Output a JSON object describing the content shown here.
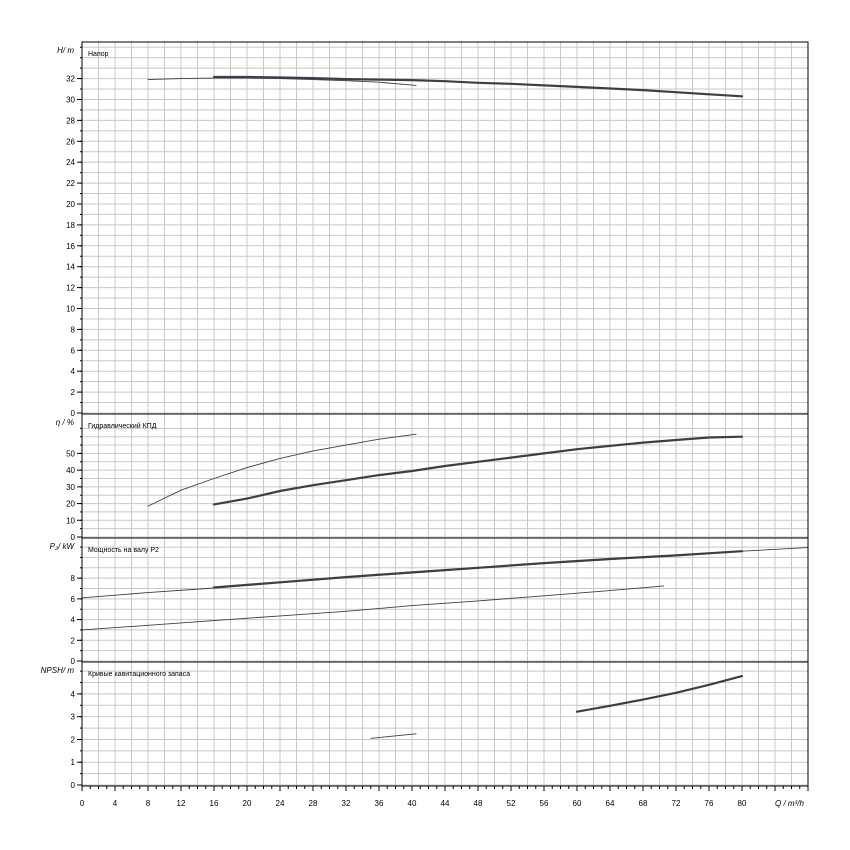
{
  "chart_data": {
    "type": "line",
    "x_axis": {
      "label": "Q / m³/h",
      "range": [
        0,
        88
      ],
      "ticks": [
        0,
        4,
        8,
        12,
        16,
        20,
        24,
        28,
        32,
        36,
        40,
        44,
        48,
        52,
        56,
        60,
        64,
        68,
        72,
        76,
        80
      ]
    },
    "panels": [
      {
        "id": "head",
        "title": "Напор",
        "ylabel": "H/ m",
        "ylim": [
          0,
          35.5
        ],
        "yticks": [
          0,
          2,
          4,
          6,
          8,
          10,
          12,
          14,
          16,
          18,
          20,
          22,
          24,
          26,
          28,
          30,
          32
        ],
        "series": [
          {
            "style": "bold",
            "color": "#3a3f4a",
            "points": [
              [
                16,
                32.15
              ],
              [
                20,
                32.15
              ],
              [
                24,
                32.1
              ],
              [
                28,
                32.05
              ],
              [
                32,
                31.95
              ],
              [
                36,
                31.9
              ],
              [
                40,
                31.85
              ],
              [
                44,
                31.75
              ],
              [
                48,
                31.6
              ],
              [
                52,
                31.5
              ],
              [
                56,
                31.35
              ],
              [
                60,
                31.2
              ],
              [
                64,
                31.05
              ],
              [
                68,
                30.9
              ],
              [
                72,
                30.7
              ],
              [
                76,
                30.5
              ],
              [
                80,
                30.3
              ]
            ]
          },
          {
            "style": "thin",
            "color": "#3a3f4a",
            "points": [
              [
                8,
                31.9
              ],
              [
                12,
                32.0
              ],
              [
                16,
                32.05
              ],
              [
                20,
                32.05
              ],
              [
                24,
                32.0
              ],
              [
                28,
                31.9
              ],
              [
                32,
                31.8
              ],
              [
                36,
                31.65
              ],
              [
                40.5,
                31.35
              ]
            ]
          }
        ]
      },
      {
        "id": "efficiency",
        "title": "Гидравлический КПД",
        "ylabel": "η / %",
        "ylim": [
          0,
          67
        ],
        "yticks": [
          0,
          10,
          20,
          30,
          40,
          50
        ],
        "series": [
          {
            "style": "bold",
            "color": "#3a3f4a",
            "points": [
              [
                16,
                19.5
              ],
              [
                20,
                23
              ],
              [
                24,
                27.5
              ],
              [
                28,
                31
              ],
              [
                32,
                34
              ],
              [
                36,
                37
              ],
              [
                40,
                39.5
              ],
              [
                44,
                42.5
              ],
              [
                48,
                45
              ],
              [
                52,
                47.5
              ],
              [
                56,
                50
              ],
              [
                60,
                52.5
              ],
              [
                64,
                54.5
              ],
              [
                68,
                56.5
              ],
              [
                72,
                58
              ],
              [
                76,
                59.5
              ],
              [
                80,
                60
              ]
            ]
          },
          {
            "style": "thin",
            "color": "#3a3f4a",
            "points": [
              [
                8,
                18.5
              ],
              [
                12,
                28
              ],
              [
                16,
                35
              ],
              [
                20,
                41.5
              ],
              [
                24,
                47
              ],
              [
                28,
                51.5
              ],
              [
                32,
                55
              ],
              [
                36,
                58.5
              ],
              [
                40.5,
                61.5
              ]
            ]
          }
        ]
      },
      {
        "id": "power",
        "title": "Мощность на валу P2",
        "ylabel": "P₂/ kW",
        "ylim": [
          0,
          11.2
        ],
        "yticks": [
          0,
          2,
          4,
          6,
          8
        ],
        "series": [
          {
            "style": "thin",
            "color": "#3a3f4a",
            "points": [
              [
                0,
                6.1
              ],
              [
                8,
                6.6
              ],
              [
                16,
                7.05
              ],
              [
                24,
                7.55
              ],
              [
                32,
                8.05
              ],
              [
                40,
                8.5
              ],
              [
                48,
                8.95
              ],
              [
                56,
                9.4
              ],
              [
                64,
                9.8
              ],
              [
                72,
                10.15
              ],
              [
                80,
                10.6
              ],
              [
                88,
                10.95
              ]
            ]
          },
          {
            "style": "bold",
            "color": "#3a3f4a",
            "points": [
              [
                16,
                7.1
              ],
              [
                24,
                7.6
              ],
              [
                32,
                8.1
              ],
              [
                40,
                8.55
              ],
              [
                48,
                9.0
              ],
              [
                56,
                9.45
              ],
              [
                64,
                9.85
              ],
              [
                72,
                10.2
              ],
              [
                80,
                10.6
              ]
            ]
          },
          {
            "style": "thin",
            "color": "#3a3f4a",
            "points": [
              [
                0,
                3.0
              ],
              [
                8,
                3.45
              ],
              [
                16,
                3.9
              ],
              [
                24,
                4.35
              ],
              [
                32,
                4.8
              ],
              [
                40,
                5.35
              ],
              [
                48,
                5.8
              ],
              [
                56,
                6.3
              ],
              [
                64,
                6.8
              ],
              [
                70.5,
                7.25
              ]
            ]
          }
        ]
      },
      {
        "id": "npsh",
        "title": "Кривые кавитационного запаса",
        "ylabel": "NPSH/ m",
        "ylim": [
          0,
          5.05
        ],
        "yticks": [
          0,
          1,
          2,
          3,
          4
        ],
        "series": [
          {
            "style": "bold",
            "color": "#3a3f4a",
            "points": [
              [
                60,
                3.22
              ],
              [
                64,
                3.48
              ],
              [
                68,
                3.75
              ],
              [
                72,
                4.05
              ],
              [
                76,
                4.4
              ],
              [
                80,
                4.78
              ]
            ]
          },
          {
            "style": "thin",
            "color": "#3a3f4a",
            "points": [
              [
                35,
                2.05
              ],
              [
                40.5,
                2.25
              ]
            ]
          }
        ]
      }
    ]
  }
}
